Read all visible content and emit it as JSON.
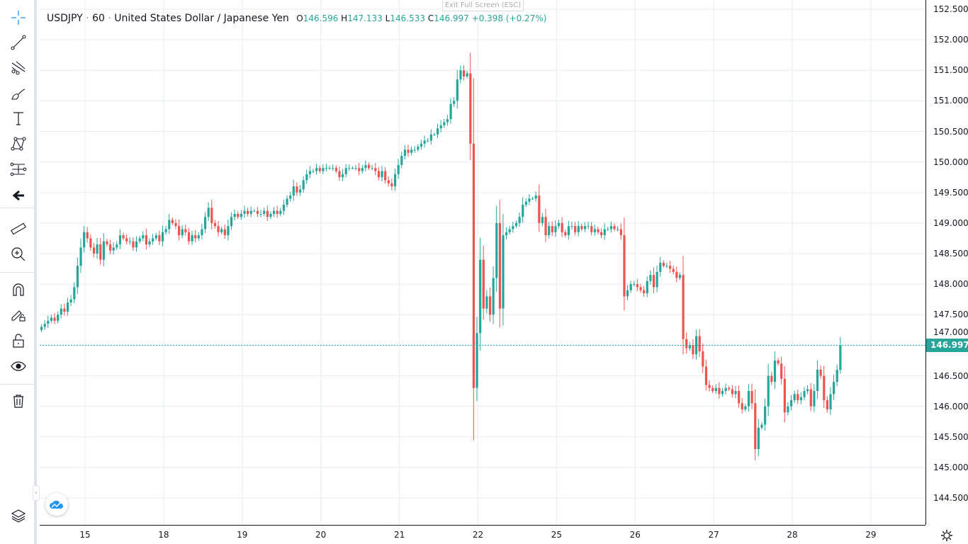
{
  "symbol": {
    "ticker": "USDJPY",
    "interval": "60",
    "name": "United States Dollar / Japanese Yen",
    "open_label": "O",
    "open": "146.596",
    "high_label": "H",
    "high": "147.133",
    "low_label": "L",
    "low": "146.533",
    "close_label": "C",
    "close": "146.997",
    "change": "+0.398 (+0.27%)"
  },
  "tooltip": "Exit Full Screen (ESC)",
  "current_price": "146.997",
  "colors": {
    "up": "#26a69a",
    "down": "#ef5350",
    "grid": "#e6edf4",
    "accent": "#2196f3"
  },
  "toolbar": {
    "tools": [
      "crosshair-icon",
      "trend-line-icon",
      "pitchfork-icon",
      "brush-icon",
      "text-icon",
      "pattern-icon",
      "prediction-icon",
      "back-arrow-icon",
      "ruler-icon",
      "zoom-in-icon",
      "magnet-icon",
      "lock-drawing-icon",
      "lock-icon",
      "eye-icon",
      "trash-icon",
      "layers-icon"
    ]
  },
  "chart_data": {
    "type": "candlestick",
    "interval": "60",
    "y_ticks": [
      "144.500",
      "145.000",
      "145.500",
      "146.000",
      "146.500",
      "147.000",
      "147.500",
      "148.000",
      "148.500",
      "149.000",
      "149.500",
      "150.000",
      "150.500",
      "151.000",
      "151.500",
      "152.000",
      "152.500"
    ],
    "ylim": [
      144.3,
      152.65
    ],
    "x_ticks": [
      {
        "label": "15",
        "bar": 13
      },
      {
        "label": "18",
        "bar": 37
      },
      {
        "label": "19",
        "bar": 61
      },
      {
        "label": "20",
        "bar": 85
      },
      {
        "label": "21",
        "bar": 109
      },
      {
        "label": "22",
        "bar": 133
      },
      {
        "label": "25",
        "bar": 157
      },
      {
        "label": "26",
        "bar": 181
      },
      {
        "label": "27",
        "bar": 205
      },
      {
        "label": "28",
        "bar": 229
      },
      {
        "label": "29",
        "bar": 253
      }
    ],
    "closes": [
      147.3,
      147.35,
      147.4,
      147.45,
      147.4,
      147.5,
      147.6,
      147.55,
      147.7,
      147.75,
      147.95,
      148.3,
      148.6,
      148.85,
      148.75,
      148.6,
      148.5,
      148.65,
      148.4,
      148.7,
      148.65,
      148.55,
      148.6,
      148.65,
      148.8,
      148.75,
      148.7,
      148.7,
      148.6,
      148.7,
      148.75,
      148.8,
      148.65,
      148.7,
      148.75,
      148.8,
      148.7,
      148.85,
      148.9,
      149.05,
      149.0,
      148.95,
      148.8,
      148.9,
      148.85,
      148.7,
      148.8,
      148.75,
      148.8,
      148.9,
      149.1,
      149.25,
      149.0,
      148.95,
      148.85,
      148.9,
      148.8,
      148.95,
      149.1,
      149.15,
      149.1,
      149.15,
      149.2,
      149.15,
      149.2,
      149.2,
      149.15,
      149.15,
      149.2,
      149.1,
      149.15,
      149.2,
      149.15,
      149.2,
      149.3,
      149.4,
      149.45,
      149.6,
      149.5,
      149.55,
      149.7,
      149.8,
      149.85,
      149.85,
      149.9,
      149.85,
      149.9,
      149.9,
      149.9,
      149.9,
      149.85,
      149.75,
      149.8,
      149.9,
      149.9,
      149.9,
      149.9,
      149.85,
      149.9,
      149.95,
      149.9,
      149.9,
      149.85,
      149.75,
      149.85,
      149.7,
      149.65,
      149.6,
      149.8,
      149.95,
      150.1,
      150.2,
      150.15,
      150.2,
      150.2,
      150.25,
      150.3,
      150.35,
      150.35,
      150.45,
      150.45,
      150.55,
      150.6,
      150.65,
      150.7,
      150.95,
      151.0,
      151.35,
      151.5,
      151.4,
      151.45,
      150.3,
      146.3,
      147.2,
      148.4,
      147.6,
      147.8,
      147.5,
      148.1,
      149.0,
      147.6,
      148.8,
      148.85,
      148.9,
      148.95,
      149.0,
      149.1,
      149.3,
      149.35,
      149.4,
      149.4,
      149.45,
      149.0,
      149.1,
      148.8,
      148.95,
      148.85,
      148.95,
      149.0,
      148.85,
      148.8,
      148.95,
      148.95,
      148.85,
      148.95,
      148.9,
      148.95,
      148.95,
      148.85,
      148.9,
      148.85,
      148.8,
      148.9,
      148.9,
      148.95,
      148.9,
      148.9,
      148.8,
      147.8,
      147.9,
      148.0,
      148.0,
      147.95,
      147.9,
      147.85,
      148.05,
      148.15,
      147.95,
      148.2,
      148.35,
      148.3,
      148.3,
      148.25,
      148.2,
      148.1,
      148.15,
      147.1,
      146.95,
      147.0,
      146.85,
      147.15,
      146.9,
      146.65,
      146.35,
      146.3,
      146.25,
      146.3,
      146.2,
      146.25,
      146.3,
      146.28,
      146.2,
      146.25,
      146.05,
      145.95,
      146.0,
      146.25,
      146.05,
      145.3,
      145.65,
      145.7,
      146.0,
      146.5,
      146.4,
      146.75,
      146.7,
      146.45,
      145.9,
      146.0,
      146.1,
      146.2,
      146.1,
      146.15,
      146.25,
      146.28,
      146.0,
      146.25,
      146.6,
      146.5,
      146.1,
      145.95,
      146.2,
      146.4,
      146.596,
      146.997
    ],
    "last_bar": {
      "open": 146.596,
      "high": 147.133,
      "low": 146.533,
      "close": 146.997
    },
    "grid": true
  }
}
